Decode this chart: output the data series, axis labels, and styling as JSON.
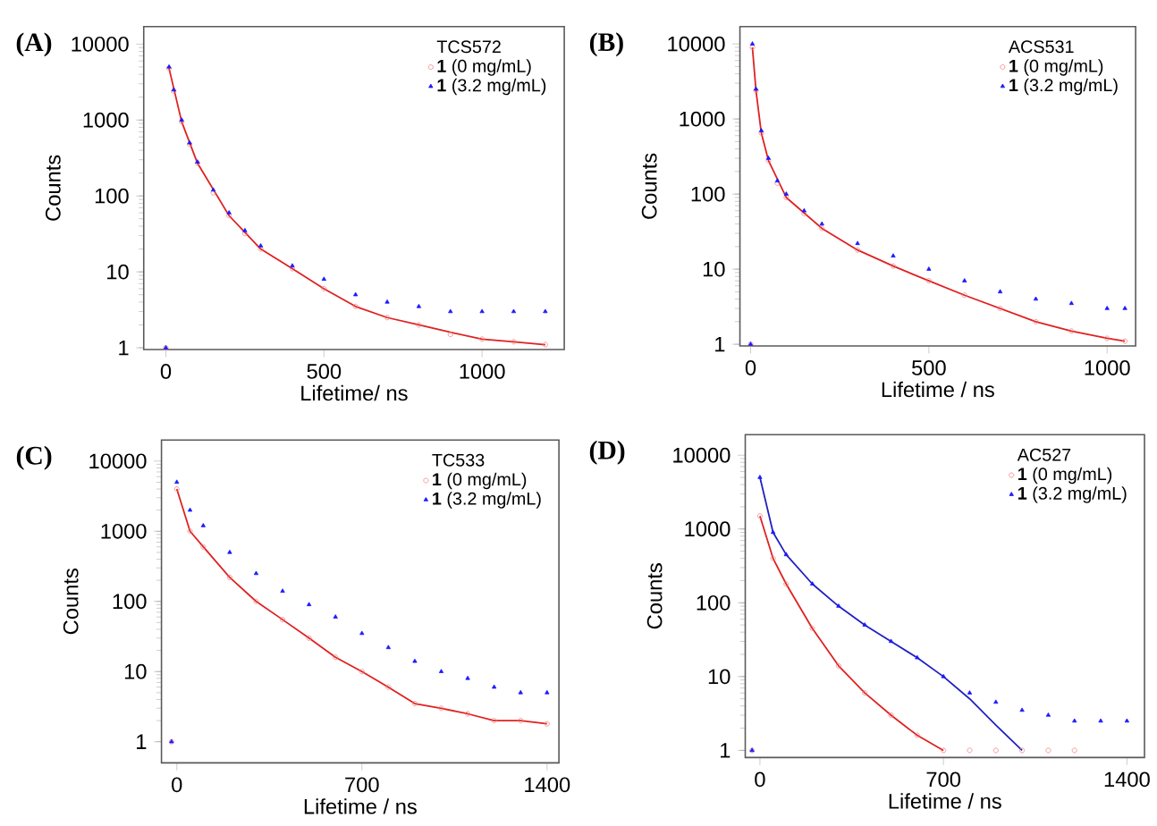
{
  "chart_data": [
    {
      "type": "scatter",
      "title": "(A)",
      "xlabel": "Lifetime/ ns",
      "ylabel": "Counts",
      "legend_title": "TCS572",
      "legend": "top right",
      "log": "y",
      "xlim": [
        -70,
        1260
      ],
      "ylim": [
        0.95,
        17000
      ],
      "xticks": [
        0,
        500,
        1000
      ],
      "yticks": [
        1,
        10,
        100,
        1000,
        10000
      ],
      "series": [
        {
          "name": "**1** (0 mg/mL)",
          "color": "#f08080",
          "marker": "circle",
          "x": [
            0,
            10,
            25,
            50,
            75,
            100,
            150,
            200,
            250,
            300,
            400,
            500,
            600,
            700,
            800,
            900,
            1000,
            1100,
            1200
          ],
          "values": [
            1,
            4800,
            2400,
            950,
            480,
            270,
            110,
            55,
            32,
            20,
            11,
            6,
            3.5,
            2.5,
            2,
            1.5,
            1.3,
            1.2,
            1.1
          ]
        },
        {
          "name": "**1** (3.2 mg/mL)",
          "color": "#1a1aff",
          "marker": "triangle",
          "x": [
            0,
            10,
            25,
            50,
            75,
            100,
            150,
            200,
            250,
            300,
            400,
            500,
            600,
            700,
            800,
            900,
            1000,
            1100,
            1200
          ],
          "values": [
            1,
            5000,
            2500,
            1000,
            500,
            280,
            120,
            60,
            35,
            22,
            12,
            8,
            5,
            4,
            3.5,
            3,
            3,
            3,
            3
          ]
        },
        {
          "type": "line",
          "color": "#e02020",
          "x": [
            10,
            50,
            100,
            200,
            300,
            400,
            500,
            600,
            700,
            800,
            900,
            1000,
            1100,
            1200
          ],
          "values": [
            4800,
            950,
            270,
            55,
            20,
            11,
            6,
            3.5,
            2.5,
            2,
            1.6,
            1.3,
            1.2,
            1.1
          ]
        }
      ]
    },
    {
      "type": "scatter",
      "title": "(B)",
      "xlabel": "Lifetime / ns",
      "ylabel": "Counts",
      "legend_title": "ACS531",
      "legend": "top right",
      "log": "y",
      "xlim": [
        -30,
        1080
      ],
      "ylim": [
        0.95,
        17000
      ],
      "xticks": [
        0,
        500,
        1000
      ],
      "yticks": [
        1,
        10,
        100,
        1000,
        10000
      ],
      "series": [
        {
          "name": "**1** (0 mg/mL)",
          "color": "#f08080",
          "marker": "circle",
          "x": [
            0,
            5,
            15,
            30,
            50,
            75,
            100,
            150,
            200,
            300,
            400,
            500,
            600,
            700,
            800,
            900,
            1000,
            1050
          ],
          "values": [
            1,
            9000,
            2400,
            650,
            280,
            140,
            90,
            55,
            35,
            18,
            11,
            7,
            4.5,
            3,
            2,
            1.5,
            1.2,
            1.1
          ]
        },
        {
          "name": "**1** (3.2 mg/mL)",
          "color": "#1a1aff",
          "marker": "triangle",
          "x": [
            0,
            5,
            15,
            30,
            50,
            75,
            100,
            150,
            200,
            300,
            400,
            500,
            600,
            700,
            800,
            900,
            1000,
            1050
          ],
          "values": [
            1,
            10000,
            2500,
            700,
            300,
            150,
            100,
            60,
            40,
            22,
            15,
            10,
            7,
            5,
            4,
            3.5,
            3,
            3
          ]
        },
        {
          "type": "line",
          "color": "#e02020",
          "x": [
            5,
            15,
            30,
            50,
            100,
            200,
            300,
            400,
            500,
            600,
            700,
            800,
            900,
            1000,
            1050
          ],
          "values": [
            9000,
            2400,
            650,
            280,
            90,
            35,
            18,
            11,
            7,
            4.5,
            3,
            2,
            1.5,
            1.2,
            1.1
          ]
        }
      ]
    },
    {
      "type": "scatter",
      "title": "(C)",
      "xlabel": "Lifetime / ns",
      "ylabel": "Counts",
      "legend_title": "TC533",
      "legend": "top right",
      "log": "y",
      "xlim": [
        -58,
        1445
      ],
      "ylim": [
        0.5,
        20000
      ],
      "xticks": [
        0,
        700,
        1400
      ],
      "yticks": [
        1,
        10,
        100,
        1000,
        10000
      ],
      "series": [
        {
          "name": "**1** (0 mg/mL)",
          "color": "#f08080",
          "marker": "circle",
          "x": [
            -20,
            0,
            50,
            100,
            200,
            300,
            400,
            500,
            600,
            700,
            800,
            900,
            1000,
            1100,
            1200,
            1300,
            1400
          ],
          "values": [
            1,
            4000,
            1000,
            600,
            220,
            100,
            55,
            30,
            16,
            10,
            6,
            3.5,
            3,
            2.5,
            2,
            2,
            1.8
          ]
        },
        {
          "name": "**1** (3.2 mg/mL)",
          "color": "#1a1aff",
          "marker": "triangle",
          "x": [
            -20,
            0,
            50,
            100,
            200,
            300,
            400,
            500,
            600,
            700,
            800,
            900,
            1000,
            1100,
            1200,
            1300,
            1400
          ],
          "values": [
            1,
            5000,
            2000,
            1200,
            500,
            250,
            140,
            90,
            60,
            35,
            22,
            14,
            10,
            8,
            6,
            5,
            5
          ]
        },
        {
          "type": "line",
          "color": "#e02020",
          "x": [
            0,
            50,
            100,
            200,
            300,
            400,
            500,
            600,
            700,
            800,
            900,
            1000,
            1100,
            1200,
            1300,
            1400
          ],
          "values": [
            4000,
            1000,
            600,
            220,
            100,
            55,
            30,
            16,
            10,
            6,
            3.5,
            3,
            2.5,
            2,
            2,
            1.8
          ]
        }
      ]
    },
    {
      "type": "scatter",
      "title": "(D)",
      "xlabel": "Lifetime / ns",
      "ylabel": "Counts",
      "legend_title": "AC527",
      "legend": "top right",
      "log": "y",
      "xlim": [
        -56,
        1467
      ],
      "ylim": [
        0.8,
        19000
      ],
      "xticks": [
        0,
        700,
        1400
      ],
      "yticks": [
        1,
        10,
        100,
        1000,
        10000
      ],
      "series": [
        {
          "name": "**1** (0 mg/mL)",
          "color": "#f08080",
          "marker": "circle",
          "x": [
            -30,
            0,
            50,
            100,
            200,
            300,
            400,
            500,
            600,
            700,
            800,
            900,
            1000,
            1100,
            1200
          ],
          "values": [
            1,
            1500,
            400,
            180,
            45,
            14,
            6,
            3,
            1.6,
            1,
            1,
            1,
            1,
            1,
            1
          ]
        },
        {
          "name": "**1** (3.2 mg/mL)",
          "color": "#1a1aff",
          "marker": "triangle",
          "x": [
            -30,
            0,
            50,
            100,
            200,
            300,
            400,
            500,
            600,
            700,
            800,
            900,
            1000,
            1100,
            1200,
            1300,
            1400
          ],
          "values": [
            1,
            5000,
            900,
            450,
            180,
            90,
            50,
            30,
            18,
            10,
            6,
            4.5,
            3.5,
            3,
            2.5,
            2.5,
            2.5
          ]
        },
        {
          "type": "line",
          "color": "#e02020",
          "x": [
            0,
            50,
            100,
            200,
            300,
            400,
            500,
            600,
            700
          ],
          "values": [
            1500,
            400,
            180,
            45,
            14,
            6,
            3,
            1.6,
            1
          ]
        },
        {
          "type": "line",
          "color": "#2020c0",
          "x": [
            0,
            50,
            100,
            200,
            300,
            400,
            500,
            600,
            700,
            800,
            900,
            1000
          ],
          "values": [
            5000,
            900,
            450,
            180,
            90,
            50,
            30,
            18,
            10,
            5,
            2.2,
            1
          ]
        }
      ]
    }
  ]
}
